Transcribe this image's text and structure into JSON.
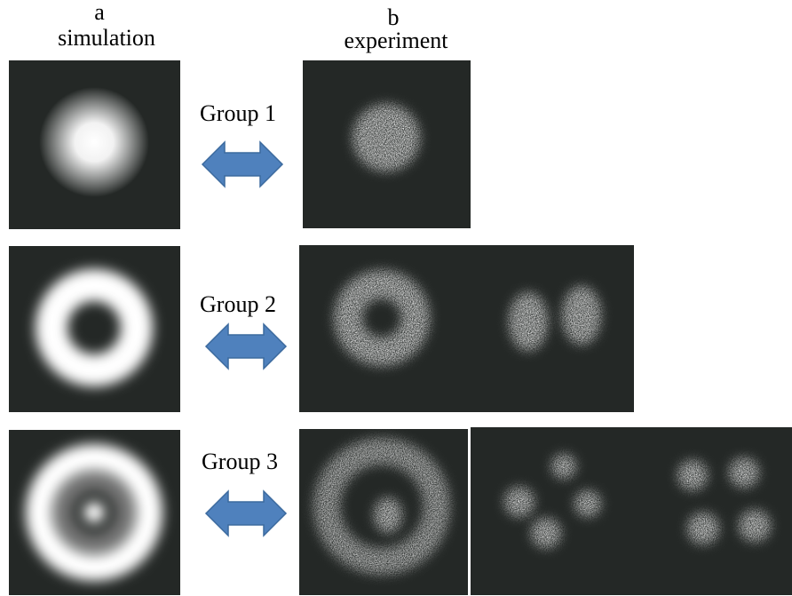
{
  "columns": [
    {
      "letter": "a",
      "label": "simulation"
    },
    {
      "letter": "b",
      "label": "experiment"
    }
  ],
  "groups": [
    {
      "label": "Group 1"
    },
    {
      "label": "Group 2"
    },
    {
      "label": "Group 3"
    }
  ]
}
